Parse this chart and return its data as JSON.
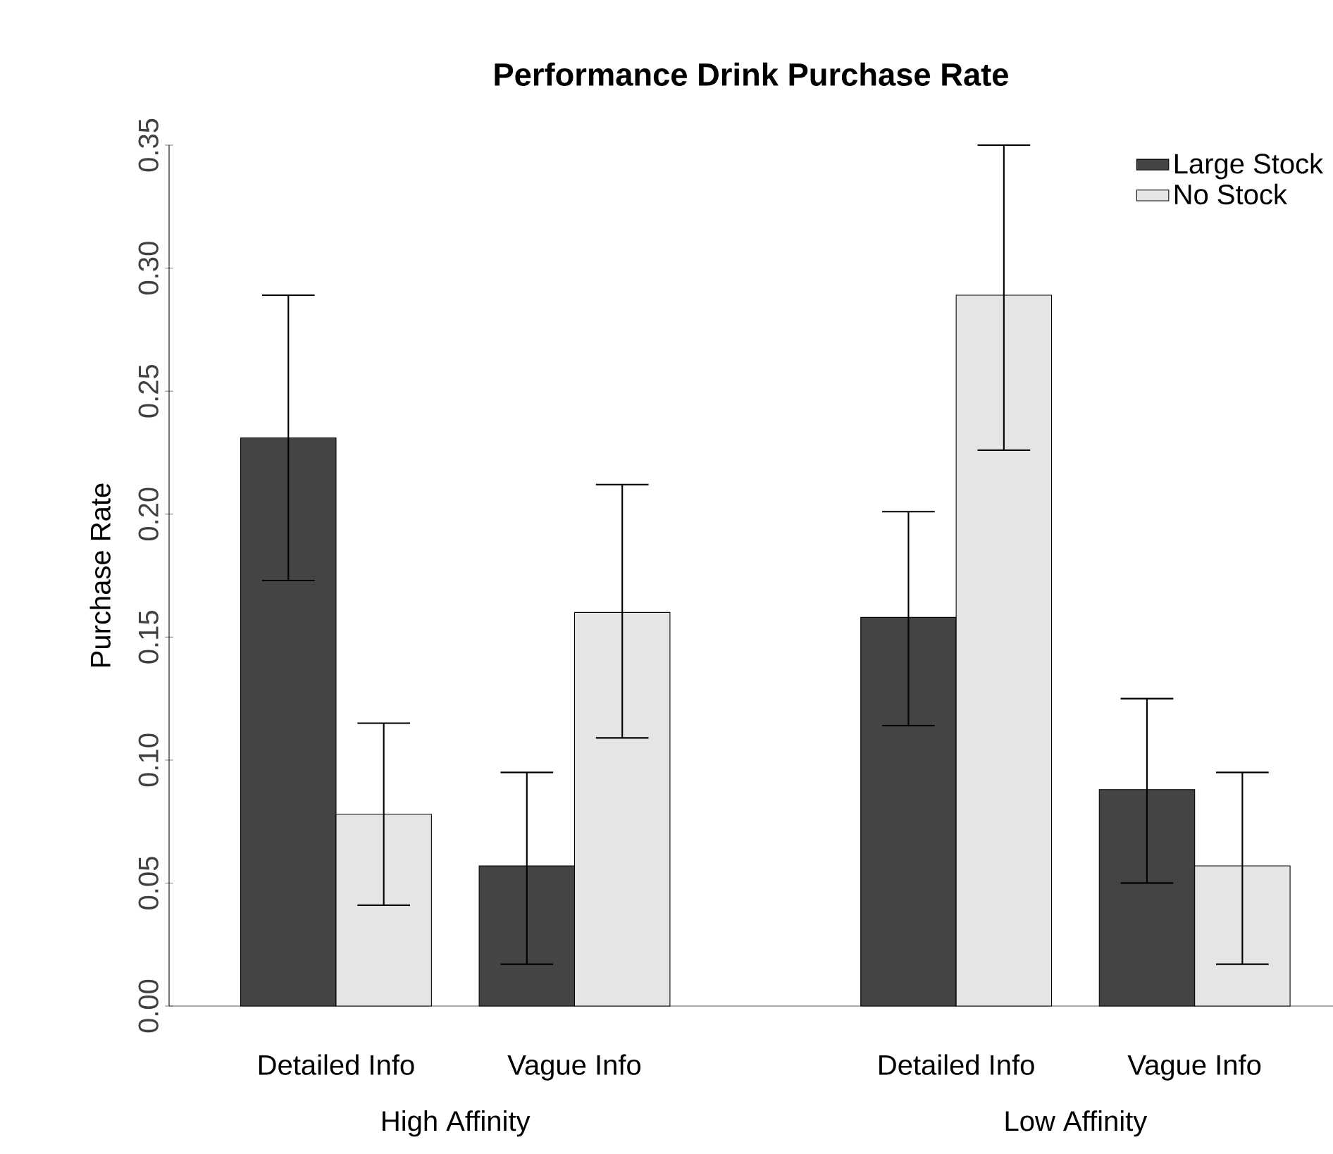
{
  "chart_data": {
    "type": "bar",
    "title": "Performance Drink Purchase Rate",
    "ylabel": "Purchase Rate",
    "categories": [
      "Detailed Info",
      "Vague Info",
      "Detailed Info",
      "Vague Info"
    ],
    "annotations": [
      "High Affinity",
      "Low Affinity"
    ],
    "series": [
      {
        "name": "Large Stock",
        "color": "#444444",
        "values": [
          0.231,
          0.057,
          0.158,
          0.088
        ],
        "errors": [
          [
            0.173,
            0.289
          ],
          [
            0.017,
            0.095
          ],
          [
            0.114,
            0.201
          ],
          [
            0.05,
            0.125
          ]
        ]
      },
      {
        "name": "No Stock",
        "color": "#e5e5e5",
        "values": [
          0.078,
          0.16,
          0.289,
          0.057
        ],
        "errors": [
          [
            0.041,
            0.115
          ],
          [
            0.109,
            0.212
          ],
          [
            0.226,
            0.35
          ],
          [
            0.017,
            0.095
          ]
        ]
      }
    ],
    "ylim": [
      0,
      0.35
    ],
    "yticks": [
      {
        "value": 0,
        "label": "0.00"
      },
      {
        "value": 0.05,
        "label": "0.05"
      },
      {
        "value": 0.1,
        "label": "0.10"
      },
      {
        "value": 0.15,
        "label": "0.15"
      },
      {
        "value": 0.2,
        "label": "0.20"
      },
      {
        "value": 0.25,
        "label": "0.25"
      },
      {
        "value": 0.3,
        "label": "0.30"
      },
      {
        "value": 0.35,
        "label": "0.35"
      }
    ],
    "legend": "top right",
    "grid": false
  }
}
